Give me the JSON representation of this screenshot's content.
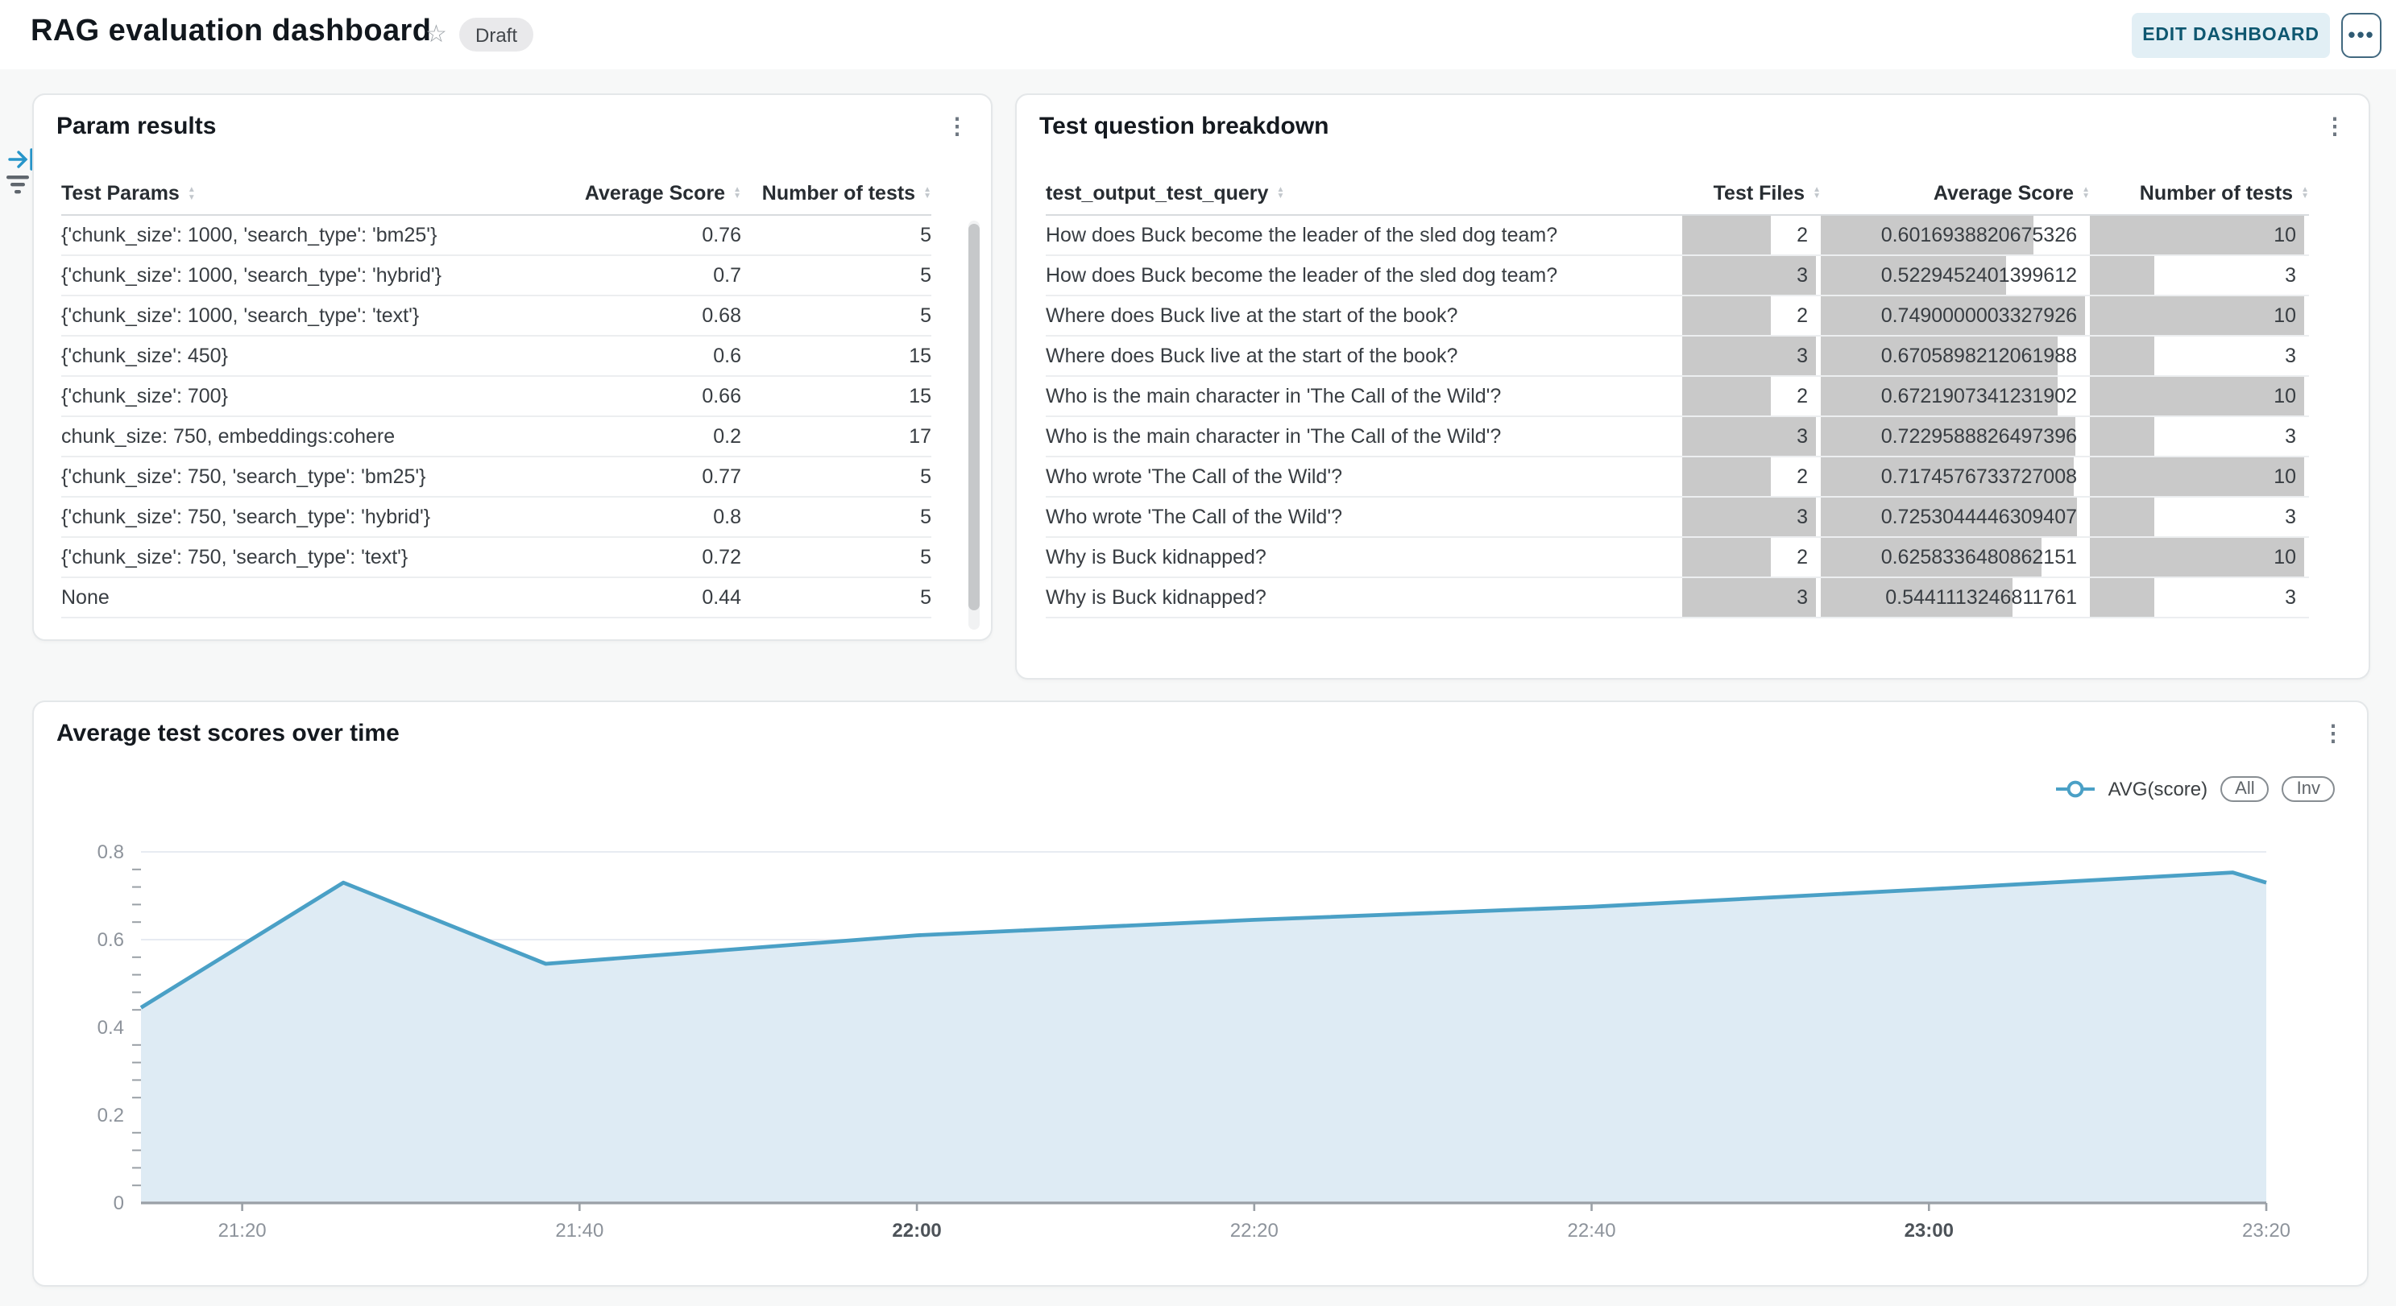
{
  "header": {
    "title": "RAG evaluation dashboard",
    "badge": "Draft",
    "edit_label": "EDIT DASHBOARD",
    "more_label": "…",
    "star_glyph": "☆",
    "kebab_glyph": "⋮"
  },
  "param_results": {
    "title": "Param results",
    "columns": [
      "Test Params",
      "Average Score",
      "Number of tests"
    ],
    "rows": [
      {
        "params": "{'chunk_size': 1000, 'search_type': 'bm25'}",
        "avg": "0.76",
        "tests": "5"
      },
      {
        "params": "{'chunk_size': 1000, 'search_type': 'hybrid'}",
        "avg": "0.7",
        "tests": "5"
      },
      {
        "params": "{'chunk_size': 1000, 'search_type': 'text'}",
        "avg": "0.68",
        "tests": "5"
      },
      {
        "params": "{'chunk_size': 450}",
        "avg": "0.6",
        "tests": "15"
      },
      {
        "params": "{'chunk_size': 700}",
        "avg": "0.66",
        "tests": "15"
      },
      {
        "params": "chunk_size: 750, embeddings:cohere",
        "avg": "0.2",
        "tests": "17"
      },
      {
        "params": "{'chunk_size': 750, 'search_type': 'bm25'}",
        "avg": "0.77",
        "tests": "5"
      },
      {
        "params": "{'chunk_size': 750, 'search_type': 'hybrid'}",
        "avg": "0.8",
        "tests": "5"
      },
      {
        "params": "{'chunk_size': 750, 'search_type': 'text'}",
        "avg": "0.72",
        "tests": "5"
      },
      {
        "params": "None",
        "avg": "0.44",
        "tests": "5"
      }
    ]
  },
  "question_breakdown": {
    "title": "Test question breakdown",
    "columns": [
      "test_output_test_query",
      "Test Files",
      "Average Score",
      "Number of tests"
    ],
    "bar_color": "#c9c9c9",
    "max": {
      "files": 3,
      "score": 0.7490000003327926,
      "tests": 10
    },
    "rows": [
      {
        "query": "How does Buck become the leader of the sled dog team?",
        "files": 2,
        "score": "0.6016938820675326",
        "tests": 10
      },
      {
        "query": "How does Buck become the leader of the sled dog team?",
        "files": 3,
        "score": "0.5229452401399612",
        "tests": 3
      },
      {
        "query": "Where does Buck live at the start of the book?",
        "files": 2,
        "score": "0.7490000003327926",
        "tests": 10
      },
      {
        "query": "Where does Buck live at the start of the book?",
        "files": 3,
        "score": "0.6705898212061988",
        "tests": 3
      },
      {
        "query": "Who is the main character in 'The Call of the Wild'?",
        "files": 2,
        "score": "0.6721907341231902",
        "tests": 10
      },
      {
        "query": "Who is the main character in 'The Call of the Wild'?",
        "files": 3,
        "score": "0.7229588826497396",
        "tests": 3
      },
      {
        "query": "Who wrote 'The Call of the Wild'?",
        "files": 2,
        "score": "0.7174576733727008",
        "tests": 10
      },
      {
        "query": "Who wrote 'The Call of the Wild'?",
        "files": 3,
        "score": "0.7253044446309407",
        "tests": 3
      },
      {
        "query": "Why is Buck kidnapped?",
        "files": 2,
        "score": "0.6258336480862151",
        "tests": 10
      },
      {
        "query": "Why is Buck kidnapped?",
        "files": 3,
        "score": "0.5441113246811761",
        "tests": 3
      }
    ]
  },
  "chart": {
    "title": "Average test scores over time",
    "buttons": [
      "All",
      "Inv"
    ]
  },
  "chart_data": {
    "type": "area",
    "legend": "AVG(score)",
    "x": [
      "21:14",
      "21:26",
      "21:38",
      "22:00",
      "22:20",
      "22:40",
      "23:00",
      "23:18",
      "23:20"
    ],
    "y": [
      0.445,
      0.73,
      0.545,
      0.61,
      0.645,
      0.675,
      0.715,
      0.753,
      0.73
    ],
    "x_ticks": [
      {
        "label": "21:20",
        "bold": false
      },
      {
        "label": "21:40",
        "bold": false
      },
      {
        "label": "22:00",
        "bold": true
      },
      {
        "label": "22:20",
        "bold": false
      },
      {
        "label": "22:40",
        "bold": false
      },
      {
        "label": "23:00",
        "bold": true
      },
      {
        "label": "23:20",
        "bold": false
      }
    ],
    "y_ticks": [
      "0",
      "0.2",
      "0.4",
      "0.6",
      "0.8"
    ],
    "ylim": [
      0,
      0.8
    ],
    "grid": true,
    "legend_position": "top-right",
    "line_color": "#4aa0c6",
    "fill_color": "#deebf4"
  }
}
